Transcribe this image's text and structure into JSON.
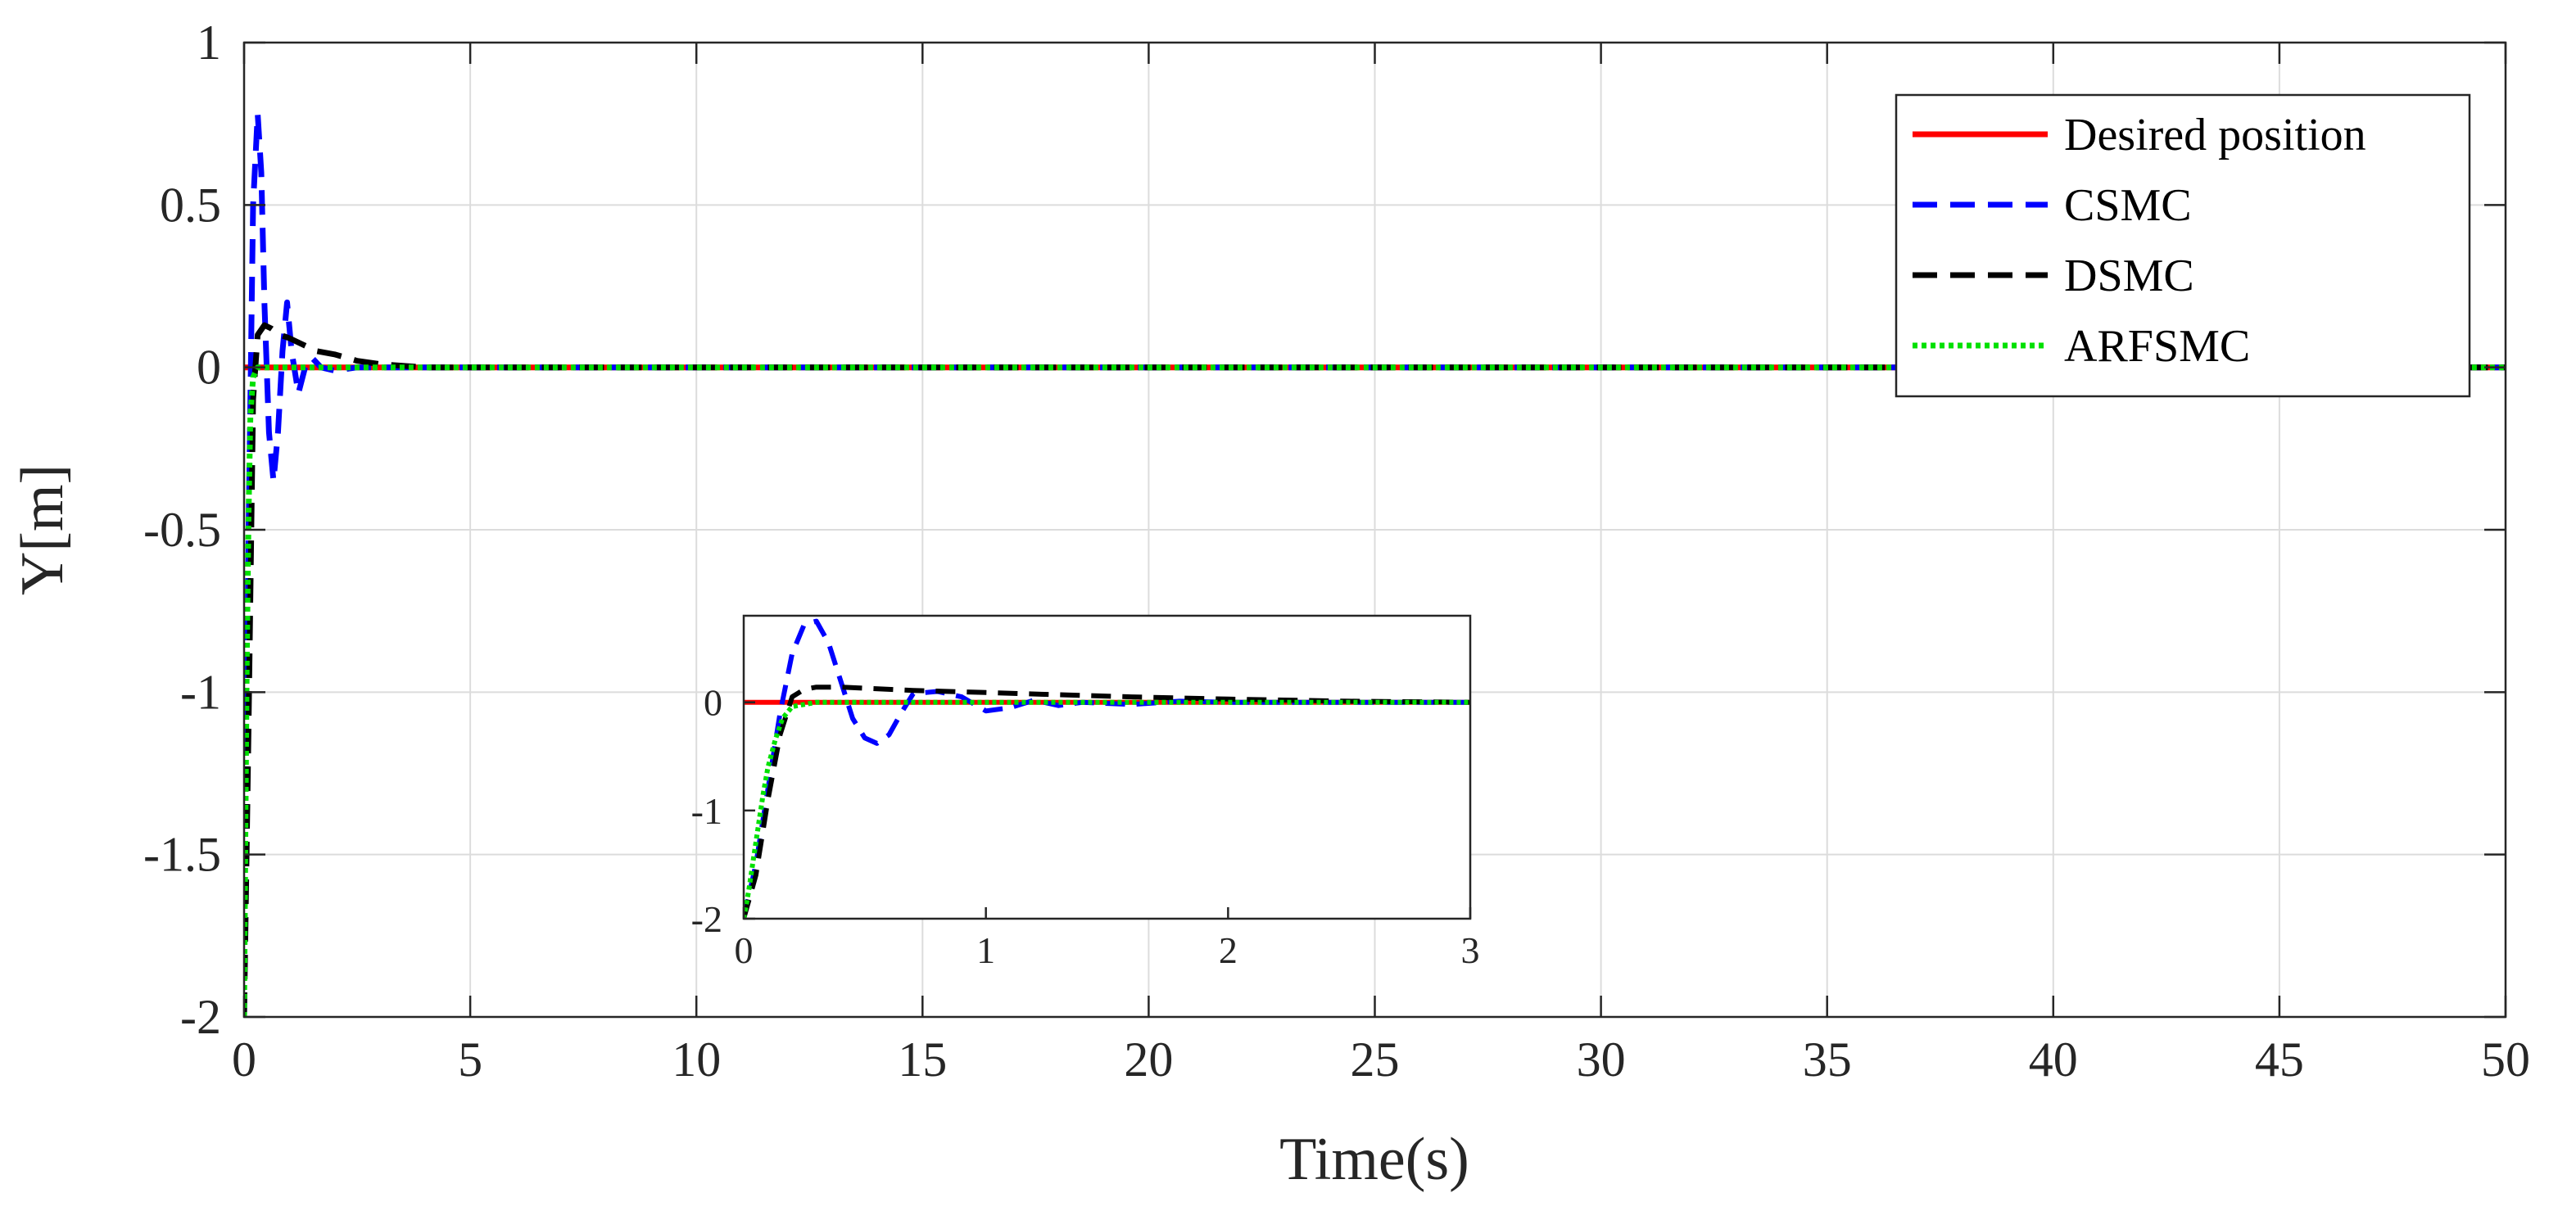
{
  "chart_data": [
    {
      "type": "line",
      "xlabel": "Time(s)",
      "ylabel": "Y[m]",
      "xlim": [
        0,
        50
      ],
      "ylim": [
        -2,
        1
      ],
      "xticks": [
        0,
        5,
        10,
        15,
        20,
        25,
        30,
        35,
        40,
        45,
        50
      ],
      "yticks": [
        1,
        0.5,
        0,
        -0.5,
        -1,
        -1.5,
        -2
      ],
      "xtick_labels": [
        "0",
        "5",
        "10",
        "15",
        "20",
        "25",
        "30",
        "35",
        "40",
        "45",
        "50"
      ],
      "ytick_labels": [
        "1",
        "0.5",
        "0",
        "-0.5",
        "-1",
        "-1.5",
        "-2"
      ],
      "grid": true,
      "legend_position": "top-right",
      "series": [
        {
          "name": "Desired position",
          "color": "#ff0000",
          "style": "solid",
          "x": [
            0,
            50
          ],
          "y": [
            0,
            0
          ]
        },
        {
          "name": "CSMC",
          "color": "#0000ff",
          "style": "dashed",
          "x": [
            0,
            0.1,
            0.2,
            0.3,
            0.38,
            0.45,
            0.55,
            0.65,
            0.75,
            0.85,
            0.95,
            1.05,
            1.2,
            1.35,
            1.5,
            1.7,
            2,
            2.5,
            3,
            4,
            5,
            10,
            20,
            30,
            40,
            50
          ],
          "y": [
            -2,
            -0.5,
            0.5,
            0.78,
            0.6,
            0.2,
            -0.2,
            -0.35,
            -0.2,
            0.05,
            0.2,
            0.05,
            -0.08,
            0.0,
            0.03,
            0.0,
            -0.01,
            0.0,
            0.0,
            0.0,
            0.0,
            0.0,
            0.0,
            0.0,
            0.0,
            0.0
          ]
        },
        {
          "name": "DSMC",
          "color": "#000000",
          "style": "dashed",
          "x": [
            0,
            0.1,
            0.2,
            0.3,
            0.45,
            0.6,
            0.8,
            1,
            1.3,
            1.6,
            2,
            2.5,
            3,
            4,
            5,
            10,
            20,
            30,
            40,
            50
          ],
          "y": [
            -2,
            -1.1,
            -0.1,
            0.1,
            0.13,
            0.12,
            0.1,
            0.09,
            0.07,
            0.05,
            0.04,
            0.02,
            0.01,
            0.0,
            0.0,
            0.0,
            0.0,
            0.0,
            0.0,
            0.0
          ]
        },
        {
          "name": "ARFSMC",
          "color": "#00e000",
          "style": "dotted",
          "x": [
            0,
            0.03,
            0.06,
            0.1,
            0.14,
            0.2,
            0.3,
            0.5,
            1,
            2,
            5,
            10,
            20,
            30,
            40,
            50
          ],
          "y": [
            -2,
            -1.4,
            -0.9,
            -0.45,
            -0.15,
            -0.03,
            0,
            0,
            0,
            0,
            0,
            0,
            0,
            0,
            0,
            0
          ]
        }
      ]
    },
    {
      "type": "line",
      "xlim": [
        0,
        3
      ],
      "ylim": [
        -2,
        0.8
      ],
      "xticks": [
        0,
        1,
        2,
        3
      ],
      "yticks": [
        0,
        -1,
        -2
      ],
      "xtick_labels": [
        "0",
        "1",
        "2",
        "3"
      ],
      "ytick_labels": [
        "0",
        "-1",
        "-2"
      ],
      "grid": false,
      "series": [
        {
          "color": "#ff0000",
          "style": "solid",
          "x": [
            0,
            3
          ],
          "y": [
            0,
            0
          ]
        },
        {
          "color": "#0000ff",
          "style": "dashed",
          "x": [
            0,
            0.05,
            0.1,
            0.15,
            0.2,
            0.25,
            0.3,
            0.35,
            0.4,
            0.45,
            0.5,
            0.55,
            0.6,
            0.65,
            0.7,
            0.8,
            0.9,
            1.0,
            1.1,
            1.2,
            1.3,
            1.4,
            1.6,
            1.8,
            2.0,
            2.3,
            2.6,
            3.0
          ],
          "y": [
            -2,
            -1.5,
            -0.8,
            -0.1,
            0.45,
            0.72,
            0.75,
            0.55,
            0.2,
            -0.15,
            -0.33,
            -0.38,
            -0.3,
            -0.1,
            0.08,
            0.1,
            0.05,
            -0.08,
            -0.05,
            0.02,
            -0.03,
            0.0,
            -0.02,
            0.01,
            0.0,
            0.0,
            0.0,
            0.0
          ]
        },
        {
          "color": "#000000",
          "style": "dashed",
          "x": [
            0,
            0.05,
            0.1,
            0.15,
            0.2,
            0.25,
            0.3,
            0.4,
            0.5,
            0.7,
            1.0,
            1.3,
            1.6,
            2.0,
            2.5,
            3.0
          ],
          "y": [
            -2,
            -1.6,
            -0.9,
            -0.3,
            0.05,
            0.12,
            0.14,
            0.14,
            0.13,
            0.11,
            0.09,
            0.07,
            0.05,
            0.03,
            0.01,
            0.0
          ]
        },
        {
          "color": "#00e000",
          "style": "dotted",
          "x": [
            0,
            0.02,
            0.04,
            0.06,
            0.08,
            0.1,
            0.13,
            0.16,
            0.2,
            0.3,
            0.5,
            1.0,
            2.0,
            3.0
          ],
          "y": [
            -2,
            -1.75,
            -1.45,
            -1.15,
            -0.85,
            -0.6,
            -0.35,
            -0.15,
            -0.04,
            0,
            0,
            0,
            0,
            0
          ]
        }
      ]
    }
  ]
}
